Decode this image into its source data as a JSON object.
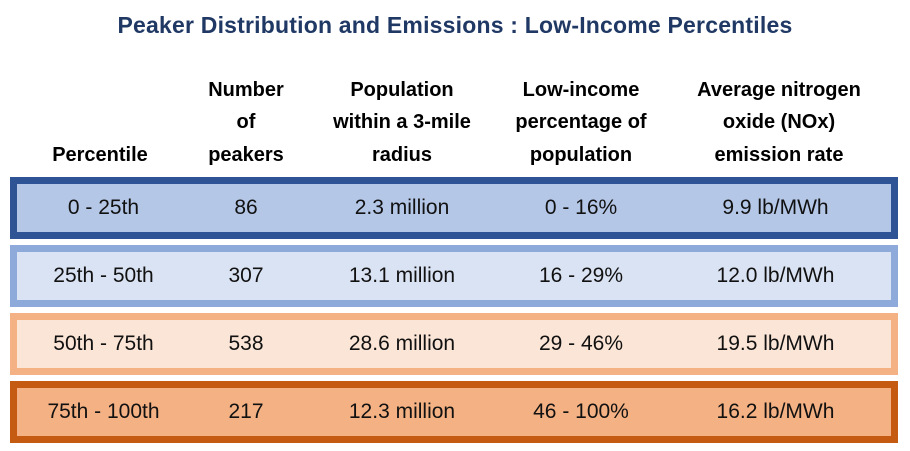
{
  "title": "Peaker Distribution and Emissions : Low-Income Percentiles",
  "colors": {
    "title_text": "#1F3864",
    "header_text": "#000000",
    "cell_text": "#111111",
    "background": "#FFFFFF"
  },
  "table": {
    "columns": [
      {
        "label": "Percentile"
      },
      {
        "label": "Number\nof\npeakers"
      },
      {
        "label": "Population\nwithin a 3-mile\nradius"
      },
      {
        "label": "Low-income\npercentage of\npopulation"
      },
      {
        "label": "Average nitrogen\noxide (NOx)\nemission rate"
      }
    ],
    "rows": [
      {
        "cells": [
          "0 - 25th",
          "86",
          "2.3 million",
          "0 - 16%",
          "9.9 lb/MWh"
        ],
        "fill": "#B4C7E7",
        "border": "#2F5496"
      },
      {
        "cells": [
          "25th - 50th",
          "307",
          "13.1 million",
          "16 - 29%",
          "12.0 lb/MWh"
        ],
        "fill": "#DAE3F3",
        "border": "#8EAADB"
      },
      {
        "cells": [
          "50th - 75th",
          "538",
          "28.6 million",
          "29 - 46%",
          "19.5 lb/MWh"
        ],
        "fill": "#FBE5D6",
        "border": "#F4B183"
      },
      {
        "cells": [
          "75th - 100th",
          "217",
          "12.3 million",
          "46 - 100%",
          "16.2 lb/MWh"
        ],
        "fill": "#F4B183",
        "border": "#C55A11"
      }
    ]
  },
  "chart_data": {
    "type": "table",
    "title": "Peaker Distribution and Emissions : Low-Income Percentiles",
    "columns": [
      "Percentile",
      "Number of peakers",
      "Population within a 3-mile radius",
      "Low-income percentage of population",
      "Average nitrogen oxide (NOx) emission rate"
    ],
    "rows": [
      [
        "0 - 25th",
        86,
        "2.3 million",
        "0 - 16%",
        "9.9 lb/MWh"
      ],
      [
        "25th - 50th",
        307,
        "13.1 million",
        "16 - 29%",
        "12.0 lb/MWh"
      ],
      [
        "50th - 75th",
        538,
        "28.6 million",
        "29 - 46%",
        "19.5 lb/MWh"
      ],
      [
        "75th - 100th",
        217,
        "12.3 million",
        "46 - 100%",
        "16.2 lb/MWh"
      ]
    ],
    "row_fill_colors": [
      "#B4C7E7",
      "#DAE3F3",
      "#FBE5D6",
      "#F4B183"
    ],
    "row_border_colors": [
      "#2F5496",
      "#8EAADB",
      "#F4B183",
      "#C55A11"
    ],
    "legend_position": "none",
    "grid": false
  }
}
